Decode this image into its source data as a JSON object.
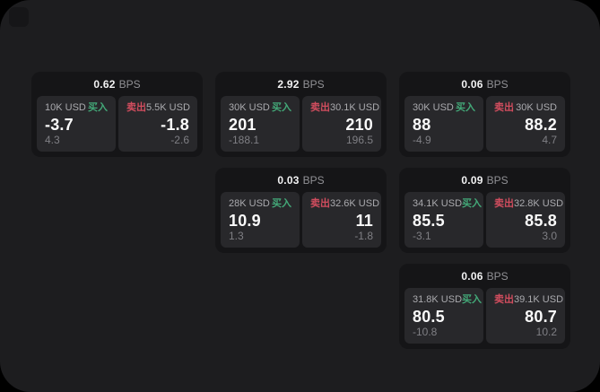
{
  "colors": {
    "page_background": "#000000",
    "window_background": "#1d1d1f",
    "card_background": "#151517",
    "panel_background": "#28282b",
    "buy_green": "#43a878",
    "sell_red": "#d14d5e",
    "primary_text": "#fafafa",
    "secondary_text": "#aaaaae",
    "dim_text": "#7f7f84"
  },
  "cards": [
    {
      "bps": {
        "value": "0.62",
        "unit": "BPS"
      },
      "buy": {
        "amount": "10K USD",
        "side_label": "买入",
        "price": "-3.7",
        "delta": "4.3"
      },
      "sell": {
        "side_label": "卖出",
        "amount": "5.5K USD",
        "price": "-1.8",
        "delta": "-2.6"
      }
    },
    {
      "bps": {
        "value": "2.92",
        "unit": "BPS"
      },
      "buy": {
        "amount": "30K USD",
        "side_label": "买入",
        "price": "201",
        "delta": "-188.1"
      },
      "sell": {
        "side_label": "卖出",
        "amount": "30.1K USD",
        "price": "210",
        "delta": "196.5"
      }
    },
    {
      "bps": {
        "value": "0.06",
        "unit": "BPS"
      },
      "buy": {
        "amount": "30K USD",
        "side_label": "买入",
        "price": "88",
        "delta": "-4.9"
      },
      "sell": {
        "side_label": "卖出",
        "amount": "30K USD",
        "price": "88.2",
        "delta": "4.7"
      }
    },
    {
      "bps": {
        "value": "0.03",
        "unit": "BPS"
      },
      "buy": {
        "amount": "28K USD",
        "side_label": "买入",
        "price": "10.9",
        "delta": "1.3"
      },
      "sell": {
        "side_label": "卖出",
        "amount": "32.6K USD",
        "price": "11",
        "delta": "-1.8"
      }
    },
    {
      "bps": {
        "value": "0.09",
        "unit": "BPS"
      },
      "buy": {
        "amount": "34.1K USD",
        "side_label": "买入",
        "price": "85.5",
        "delta": "-3.1"
      },
      "sell": {
        "side_label": "卖出",
        "amount": "32.8K USD",
        "price": "85.8",
        "delta": "3.0"
      }
    },
    {
      "bps": {
        "value": "0.06",
        "unit": "BPS"
      },
      "buy": {
        "amount": "31.8K USD",
        "side_label": "买入",
        "price": "80.5",
        "delta": "-10.8"
      },
      "sell": {
        "side_label": "卖出",
        "amount": "39.1K USD",
        "price": "80.7",
        "delta": "10.2"
      }
    }
  ]
}
